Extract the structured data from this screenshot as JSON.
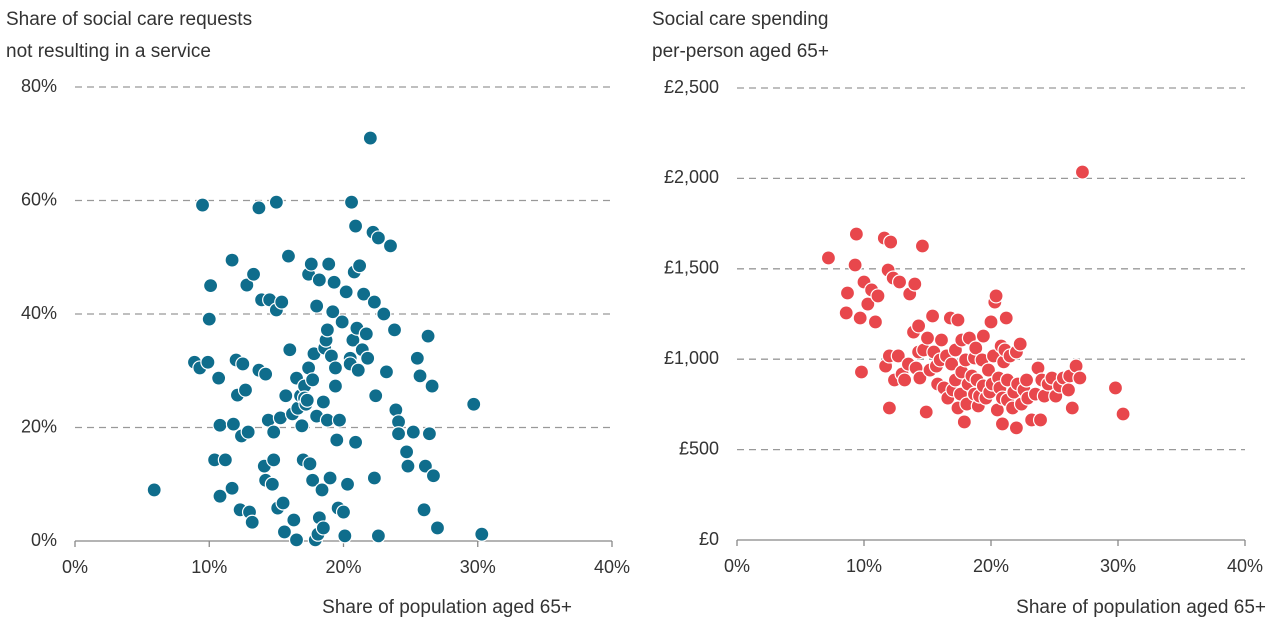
{
  "chart_data": [
    {
      "type": "scatter",
      "ylabel": [
        "Share of social care requests",
        "not resulting in a service"
      ],
      "xlabel": "Share of population aged 65+",
      "color": "#0f6d8c",
      "grid": true,
      "xlim": [
        0,
        40
      ],
      "ylim": [
        0,
        80
      ],
      "xticks": [
        {
          "value": 0,
          "label": "0%"
        },
        {
          "value": 10,
          "label": "10%"
        },
        {
          "value": 20,
          "label": "20%"
        },
        {
          "value": 30,
          "label": "30%"
        },
        {
          "value": 40,
          "label": "40%"
        }
      ],
      "yticks": [
        {
          "value": 0,
          "label": "0%"
        },
        {
          "value": 20,
          "label": "20%"
        },
        {
          "value": 40,
          "label": "40%"
        },
        {
          "value": 60,
          "label": "60%"
        },
        {
          "value": 80,
          "label": "80%"
        }
      ],
      "x": [
        5.9,
        9.5,
        8.9,
        9.3,
        9.9,
        10.1,
        10.0,
        10.4,
        10.8,
        10.7,
        10.8,
        11.2,
        11.7,
        11.7,
        11.8,
        12.0,
        12.1,
        12.3,
        12.4,
        12.5,
        12.7,
        12.8,
        12.9,
        13.0,
        13.2,
        13.3,
        13.7,
        13.7,
        13.9,
        14.1,
        14.2,
        14.2,
        14.4,
        14.5,
        14.7,
        14.8,
        14.8,
        15.0,
        15.0,
        15.1,
        15.3,
        15.4,
        15.5,
        15.6,
        15.7,
        15.9,
        16.0,
        16.2,
        16.3,
        16.5,
        16.5,
        16.6,
        16.8,
        16.9,
        17.0,
        17.1,
        17.1,
        17.2,
        17.3,
        17.4,
        17.4,
        17.5,
        17.6,
        17.7,
        17.7,
        17.8,
        17.9,
        18.0,
        18.0,
        18.1,
        18.2,
        18.2,
        18.4,
        18.5,
        18.5,
        18.6,
        18.7,
        18.8,
        18.8,
        18.9,
        19.0,
        19.1,
        19.2,
        19.3,
        19.4,
        19.4,
        19.5,
        19.6,
        19.7,
        19.9,
        20.0,
        20.1,
        20.2,
        20.3,
        20.5,
        20.5,
        20.6,
        20.7,
        20.8,
        20.9,
        20.9,
        21.0,
        21.1,
        21.2,
        21.4,
        21.5,
        21.7,
        21.8,
        22.0,
        22.2,
        22.3,
        22.3,
        22.4,
        22.6,
        22.6,
        23.0,
        23.2,
        23.5,
        23.8,
        23.9,
        24.1,
        24.1,
        24.7,
        24.8,
        25.2,
        25.5,
        25.7,
        26.0,
        26.1,
        26.3,
        26.4,
        26.6,
        26.7,
        27.0,
        29.7,
        30.3
      ],
      "y": [
        9.0,
        59.2,
        31.5,
        30.5,
        31.5,
        45,
        39.1,
        14.3,
        20.4,
        28.7,
        7.9,
        14.3,
        49.5,
        9.3,
        20.6,
        31.9,
        25.7,
        5.5,
        18.5,
        31.2,
        26.6,
        45.1,
        19.2,
        5.1,
        3.3,
        47,
        30.1,
        58.7,
        42.5,
        13.2,
        29.4,
        10.7,
        21.3,
        42.5,
        10,
        14.3,
        19.2,
        59.7,
        40.7,
        5.8,
        21.7,
        42.1,
        6.7,
        1.6,
        25.6,
        50.2,
        33.7,
        22.4,
        3.7,
        0.2,
        28.7,
        23.4,
        25.6,
        20.3,
        14.3,
        27.3,
        25.2,
        24.1,
        24.8,
        47,
        30.5,
        13.6,
        48.8,
        10.7,
        28.4,
        33,
        0.2,
        22,
        41.4,
        1.2,
        4.1,
        46,
        9,
        2.3,
        24.5,
        34,
        35.4,
        21.3,
        37.2,
        48.8,
        11.1,
        32.6,
        40.4,
        45.6,
        30.5,
        27.3,
        17.8,
        5.8,
        21.3,
        38.6,
        5.1,
        0.9,
        43.9,
        10,
        32.2,
        31.2,
        59.7,
        35.4,
        47.4,
        55.5,
        17.4,
        37.5,
        30.1,
        48.5,
        33.7,
        43.5,
        36.5,
        32.2,
        71,
        54.4,
        11.1,
        42.1,
        25.6,
        53.4,
        0.9,
        40,
        29.8,
        52,
        37.2,
        23.1,
        21,
        18.9,
        15.7,
        13.2,
        19.2,
        32.2,
        29.1,
        5.5,
        13.2,
        36.1,
        18.9,
        27.3,
        11.5,
        2.3,
        24.1,
        1.2
      ]
    },
    {
      "type": "scatter",
      "ylabel": [
        "Social care spending",
        "per-person aged 65+"
      ],
      "xlabel": "Share of population aged 65+",
      "color": "#e8474c",
      "grid": true,
      "xlim": [
        0,
        40
      ],
      "ylim": [
        0,
        2500
      ],
      "xticks": [
        {
          "value": 0,
          "label": "0%"
        },
        {
          "value": 10,
          "label": "10%"
        },
        {
          "value": 20,
          "label": "20%"
        },
        {
          "value": 30,
          "label": "30%"
        },
        {
          "value": 40,
          "label": "40%"
        }
      ],
      "yticks": [
        {
          "value": 0,
          "label": "£0"
        },
        {
          "value": 500,
          "label": "£500"
        },
        {
          "value": 1000,
          "label": "£1,000"
        },
        {
          "value": 1500,
          "label": "£1,500"
        },
        {
          "value": 2000,
          "label": "£2,000"
        },
        {
          "value": 2500,
          "label": "£2,500"
        }
      ],
      "x": [
        7.2,
        8.7,
        8.6,
        9.4,
        9.3,
        9.7,
        9.8,
        10.0,
        10.3,
        10.6,
        10.9,
        11.1,
        11.6,
        11.7,
        11.9,
        12.0,
        12.0,
        12.1,
        12.3,
        12.4,
        12.7,
        12.8,
        13.0,
        13.2,
        13.5,
        13.6,
        13.9,
        14.0,
        14.1,
        14.3,
        14.3,
        14.4,
        14.6,
        14.7,
        14.9,
        15.0,
        15.2,
        15.4,
        15.5,
        15.7,
        15.8,
        16.0,
        16.1,
        16.3,
        16.5,
        16.6,
        16.8,
        16.9,
        17.0,
        17.2,
        17.2,
        17.4,
        17.4,
        17.6,
        17.7,
        17.7,
        17.9,
        18.0,
        18.1,
        18.2,
        18.3,
        18.5,
        18.7,
        18.7,
        18.8,
        18.9,
        19.0,
        19.1,
        19.3,
        19.4,
        19.4,
        19.6,
        19.8,
        19.9,
        20.0,
        20.1,
        20.2,
        20.3,
        20.4,
        20.5,
        20.6,
        20.7,
        20.8,
        20.9,
        20.9,
        21.0,
        21.1,
        21.2,
        21.3,
        21.3,
        21.5,
        21.7,
        21.8,
        22.0,
        22.0,
        22.1,
        22.3,
        22.4,
        22.6,
        22.8,
        22.9,
        23.2,
        23.5,
        23.7,
        23.9,
        24.0,
        24.2,
        24.5,
        24.8,
        25.1,
        25.4,
        25.7,
        26.1,
        26.2,
        26.4,
        26.7,
        27.0,
        27.2,
        29.8,
        30.4
      ],
      "y": [
        1560,
        1366,
        1256,
        1692,
        1521,
        1228,
        929,
        1427,
        1305,
        1383,
        1206,
        1350,
        1670,
        962,
        1493,
        1018,
        730,
        1648,
        1449,
        885,
        1018,
        1427,
        918,
        885,
        973,
        1361,
        1150,
        1416,
        951,
        1040,
        1184,
        896,
        1626,
        1051,
        708,
        1117,
        940,
        1239,
        1040,
        962,
        863,
        996,
        1106,
        841,
        1018,
        785,
        1228,
        973,
        830,
        1051,
        885,
        730,
        1217,
        807,
        1106,
        929,
        653,
        996,
        752,
        863,
        1117,
        907,
        1007,
        807,
        1062,
        885,
        741,
        796,
        996,
        852,
        1128,
        785,
        940,
        818,
        1206,
        863,
        1018,
        1316,
        1350,
        719,
        896,
        841,
        1073,
        785,
        642,
        985,
        1051,
        1228,
        885,
        774,
        1018,
        730,
        818,
        620,
        1040,
        863,
        1084,
        752,
        830,
        885,
        785,
        664,
        807,
        951,
        664,
        885,
        796,
        863,
        896,
        796,
        852,
        896,
        830,
        907,
        730,
        962,
        896,
        2035,
        841,
        697
      ]
    }
  ]
}
